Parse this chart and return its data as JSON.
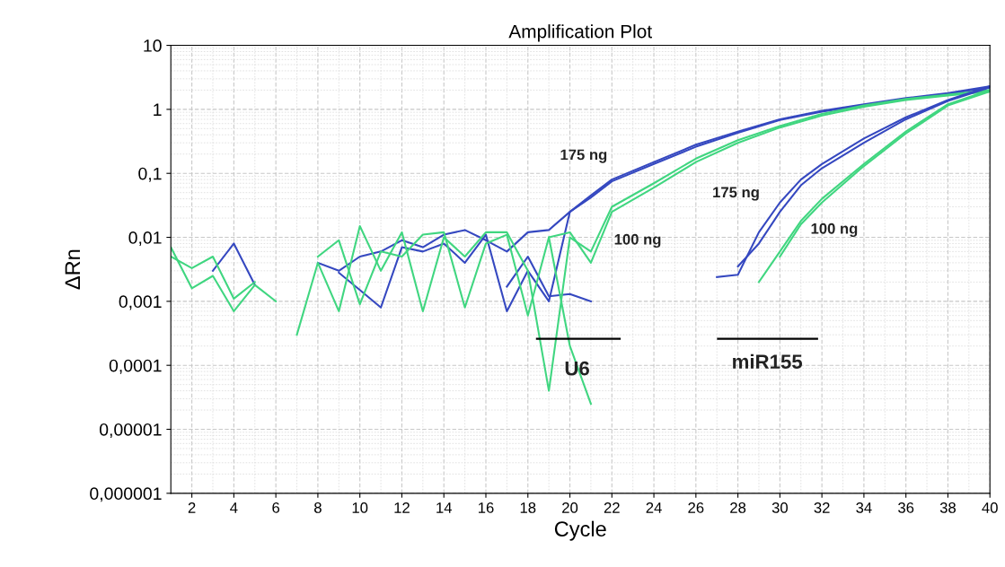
{
  "chart_data": {
    "type": "line",
    "title": "Amplification Plot",
    "xlabel": "Cycle",
    "ylabel": "ΔRn",
    "log": "y",
    "grid": true,
    "marker": "none",
    "line_style": "solid",
    "xlim": [
      1,
      40
    ],
    "xticks": [
      2,
      4,
      6,
      8,
      10,
      12,
      14,
      16,
      18,
      20,
      22,
      24,
      26,
      28,
      30,
      32,
      34,
      36,
      38,
      40
    ],
    "ylim": [
      1e-06,
      10
    ],
    "yticks": [
      {
        "value": 1e-06,
        "label": "0,000001"
      },
      {
        "value": 1e-05,
        "label": "0,00001"
      },
      {
        "value": 0.0001,
        "label": "0,0001"
      },
      {
        "value": 0.001,
        "label": "0,001"
      },
      {
        "value": 0.01,
        "label": "0,01"
      },
      {
        "value": 0.1,
        "label": "0,1"
      },
      1,
      10
    ],
    "series": [
      {
        "color": "#3548c0",
        "x": [
          3,
          4,
          5
        ],
        "values": [
          0.003,
          0.008,
          0.0018
        ]
      },
      {
        "color": "#3548c0",
        "x": [
          8,
          9,
          10,
          11,
          12,
          13,
          14,
          15,
          16,
          17,
          18,
          19,
          20,
          21,
          22,
          24,
          26,
          28,
          30,
          32,
          34,
          36,
          38,
          40
        ],
        "values": [
          0.004,
          0.003,
          0.005,
          0.006,
          0.009,
          0.007,
          0.011,
          0.013,
          0.009,
          0.006,
          0.012,
          0.013,
          0.025,
          0.045,
          0.08,
          0.15,
          0.28,
          0.45,
          0.7,
          0.95,
          1.2,
          1.5,
          1.8,
          2.3
        ]
      },
      {
        "color": "#3548c0",
        "x": [
          9,
          10,
          11,
          12,
          13,
          14,
          15,
          16,
          17,
          18,
          19,
          20,
          21,
          22,
          24,
          26,
          28,
          30,
          32,
          34,
          36,
          38,
          40
        ],
        "values": [
          0.0028,
          0.0015,
          0.0008,
          0.007,
          0.006,
          0.008,
          0.004,
          0.011,
          0.0007,
          0.003,
          0.001,
          0.025,
          0.042,
          0.075,
          0.14,
          0.26,
          0.43,
          0.68,
          0.92,
          1.15,
          1.45,
          1.75,
          2.2
        ]
      },
      {
        "color": "#3548c0",
        "x": [
          17,
          18,
          19,
          20,
          21
        ],
        "values": [
          0.0017,
          0.005,
          0.0012,
          0.0013,
          0.001
        ]
      },
      {
        "color": "#40d680",
        "x": [
          1,
          2,
          3,
          4,
          5,
          6
        ],
        "values": [
          0.007,
          0.0016,
          0.0025,
          0.0007,
          0.0018,
          0.001
        ]
      },
      {
        "color": "#40d680",
        "x": [
          1,
          2,
          3,
          4,
          5
        ],
        "values": [
          0.005,
          0.0033,
          0.005,
          0.0011,
          0.002
        ]
      },
      {
        "color": "#40d680",
        "x": [
          7,
          8,
          9,
          10,
          11,
          12,
          13,
          14,
          15,
          16,
          17,
          18,
          19,
          20,
          21,
          22,
          24,
          26,
          28,
          30,
          32,
          34,
          36,
          38,
          40
        ],
        "values": [
          0.0003,
          0.004,
          0.0007,
          0.015,
          0.003,
          0.012,
          0.0007,
          0.01,
          0.005,
          0.012,
          0.012,
          0.003,
          4e-05,
          0.01,
          0.006,
          0.03,
          0.07,
          0.17,
          0.33,
          0.55,
          0.85,
          1.15,
          1.45,
          1.7,
          2.0
        ]
      },
      {
        "color": "#40d680",
        "x": [
          8,
          9,
          10,
          11,
          12,
          13,
          14,
          15,
          16,
          17,
          18,
          19,
          20,
          21,
          22,
          24,
          26,
          28,
          30,
          32,
          34,
          36,
          38,
          40
        ],
        "values": [
          0.005,
          0.009,
          0.0009,
          0.006,
          0.005,
          0.011,
          0.012,
          0.0008,
          0.008,
          0.011,
          0.0006,
          0.01,
          0.012,
          0.004,
          0.025,
          0.06,
          0.15,
          0.3,
          0.52,
          0.8,
          1.1,
          1.4,
          1.65,
          1.9
        ]
      },
      {
        "color": "#40d680",
        "x": [
          19,
          20,
          21
        ],
        "values": [
          0.01,
          0.0002,
          2.5e-05
        ]
      },
      {
        "color": "#3548c0",
        "x": [
          27,
          28,
          29,
          30,
          31,
          32,
          34,
          36,
          38,
          40
        ],
        "values": [
          0.0024,
          0.0026,
          0.012,
          0.035,
          0.08,
          0.14,
          0.35,
          0.75,
          1.4,
          2.3
        ]
      },
      {
        "color": "#3548c0",
        "x": [
          28,
          29,
          30,
          31,
          32,
          34,
          36,
          38,
          40
        ],
        "values": [
          0.0035,
          0.008,
          0.025,
          0.065,
          0.12,
          0.3,
          0.7,
          1.35,
          2.2
        ]
      },
      {
        "color": "#40d680",
        "x": [
          29,
          30,
          31,
          32,
          34,
          36,
          38,
          40
        ],
        "values": [
          0.002,
          0.006,
          0.018,
          0.04,
          0.14,
          0.45,
          1.2,
          2.0
        ]
      },
      {
        "color": "#40d680",
        "x": [
          30,
          31,
          32,
          34,
          36,
          38,
          40
        ],
        "values": [
          0.005,
          0.016,
          0.035,
          0.13,
          0.42,
          1.15,
          1.9
        ]
      }
    ],
    "annotations": [
      "175 ng",
      "100 ng",
      "175 ng",
      "100 ng",
      "U6",
      "miR155"
    ]
  }
}
